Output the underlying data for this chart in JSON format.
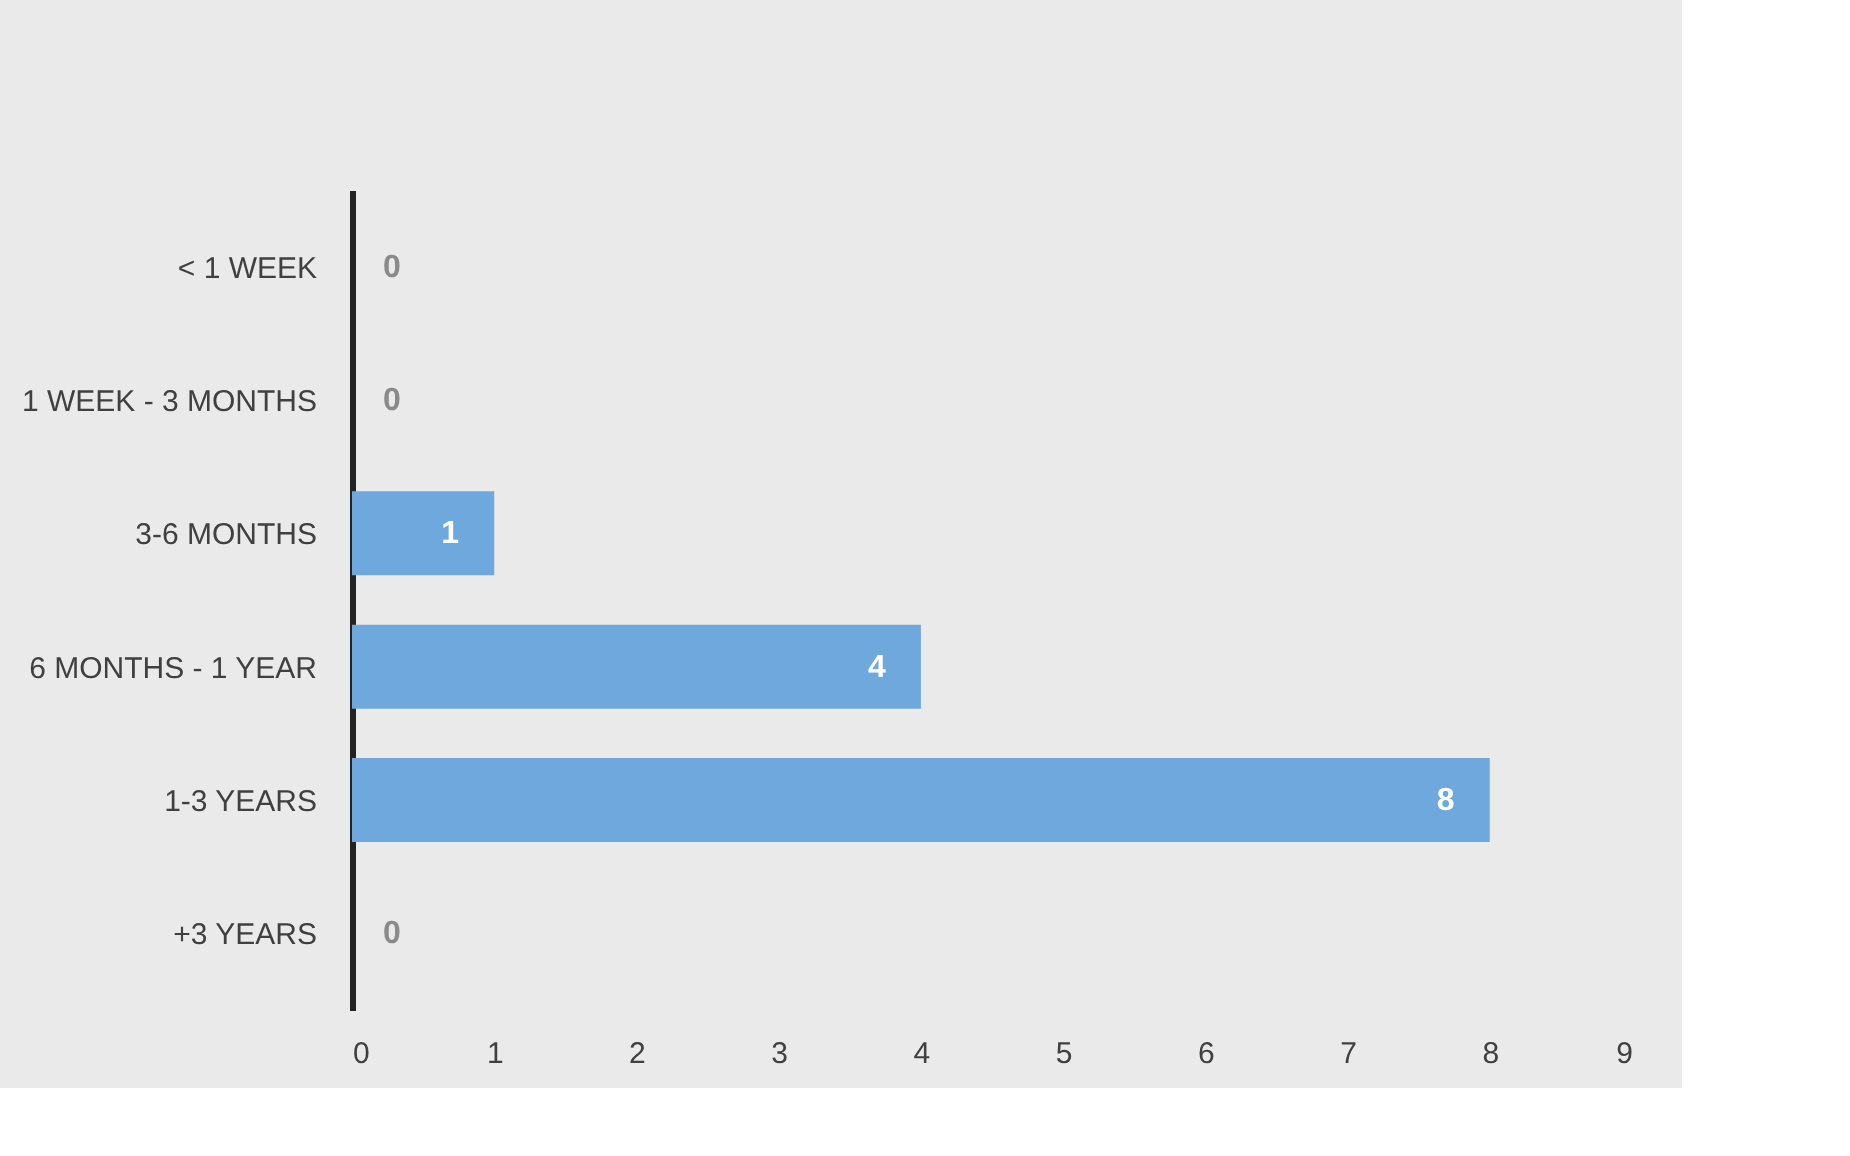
{
  "chart_data": {
    "type": "bar",
    "orientation": "horizontal",
    "categories": [
      "< 1 WEEK",
      "1 WEEK - 3 MONTHS",
      "3-6 MONTHS",
      "6 MONTHS - 1 YEAR",
      "1-3 YEARS",
      "+3 YEARS"
    ],
    "values": [
      0,
      0,
      1,
      4,
      8,
      0
    ],
    "color": "#6fa8dc",
    "data_labels": true,
    "xlim": [
      0,
      9
    ],
    "xticks": [
      0,
      1,
      2,
      3,
      4,
      5,
      6,
      7,
      8,
      9
    ],
    "grid": false
  }
}
